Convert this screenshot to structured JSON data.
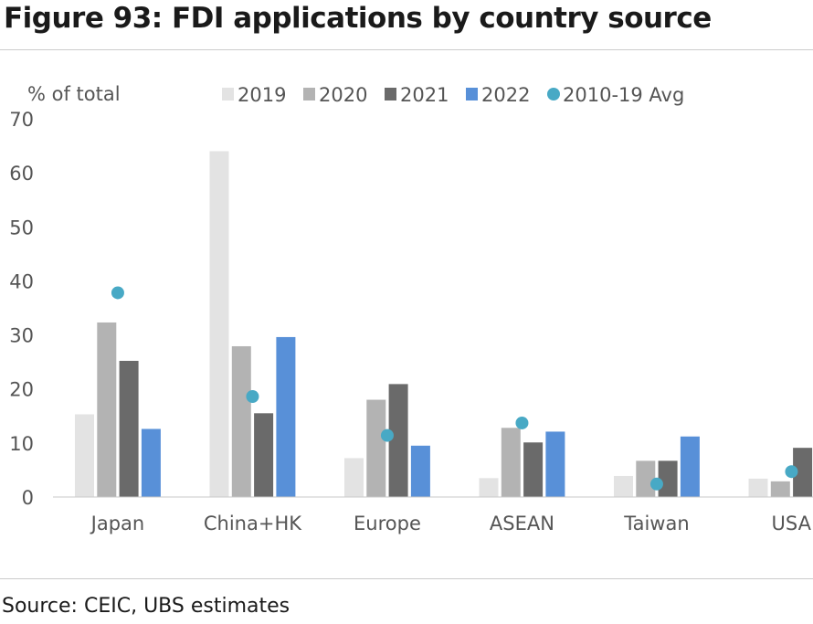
{
  "figure": {
    "title": "Figure 93: FDI applications by country source",
    "source": "Source: CEIC, UBS estimates"
  },
  "chart_data": {
    "type": "bar",
    "title": "",
    "ylabel": "% of total",
    "ylim": [
      0,
      70
    ],
    "yticks": [
      0,
      10,
      20,
      30,
      40,
      50,
      60,
      70
    ],
    "grid": false,
    "legend_position": "top",
    "categories": [
      "Japan",
      "China+HK",
      "Europe",
      "ASEAN",
      "Taiwan",
      "USA"
    ],
    "series": [
      {
        "name": "2019",
        "color": "#e3e3e3",
        "values": [
          15.3,
          64.0,
          7.2,
          3.5,
          3.9,
          3.4
        ]
      },
      {
        "name": "2020",
        "color": "#b3b3b3",
        "values": [
          32.3,
          27.9,
          18.0,
          12.8,
          6.7,
          2.9
        ]
      },
      {
        "name": "2021",
        "color": "#6a6a6a",
        "values": [
          25.2,
          15.5,
          20.9,
          10.1,
          6.7,
          9.1
        ]
      },
      {
        "name": "2022",
        "color": "#5890d8",
        "values": [
          12.6,
          29.6,
          9.5,
          12.1,
          11.2,
          null
        ]
      }
    ],
    "avg_series": {
      "name": "2010-19 Avg",
      "color": "#48a9c5",
      "values": [
        37.8,
        18.6,
        11.4,
        13.7,
        2.4,
        4.7
      ]
    }
  }
}
